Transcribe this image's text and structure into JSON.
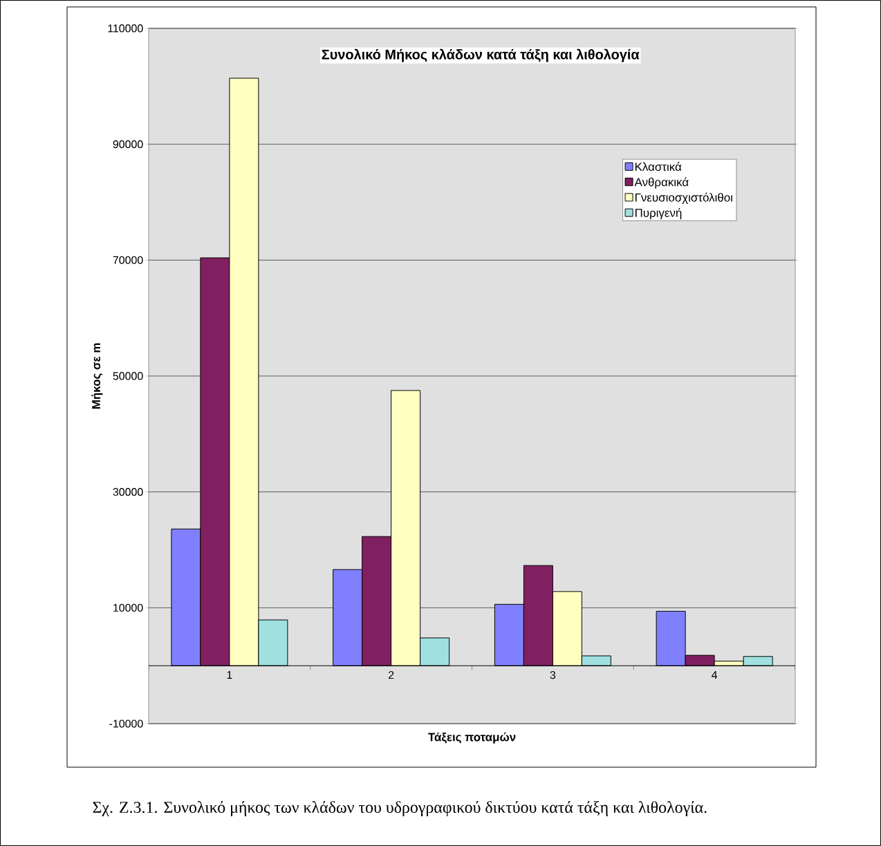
{
  "chart_data": {
    "type": "bar",
    "title": "Συνολικό Μήκος κλάδων κατά τάξη και λιθολογία",
    "xlabel": "Τάξεις ποταμών",
    "ylabel": "Μήκος σε m",
    "categories": [
      "1",
      "2",
      "3",
      "4"
    ],
    "series": [
      {
        "name": "Κλαστικά",
        "color": "#8080ff",
        "values": [
          23600,
          16600,
          10600,
          9400
        ]
      },
      {
        "name": "Ανθρακικά",
        "color": "#802060",
        "values": [
          70400,
          22300,
          17300,
          1800
        ]
      },
      {
        "name": "Γνευσιοσχιστόλιθοι",
        "color": "#ffffc0",
        "values": [
          101400,
          47500,
          12800,
          800
        ]
      },
      {
        "name": "Πυριγενή",
        "color": "#a0e0e0",
        "values": [
          7900,
          4800,
          1700,
          1600
        ]
      }
    ],
    "ylim": [
      -10000,
      110000
    ],
    "yticks": [
      -10000,
      10000,
      30000,
      50000,
      70000,
      90000,
      110000
    ],
    "grid": "y",
    "legend": "top right",
    "annotations": [
      "Σχ. Ζ.3.1. Συνολικό μήκος των κλάδων του υδρογραφικού δικτύου κατά τάξη και λιθολογία."
    ]
  }
}
